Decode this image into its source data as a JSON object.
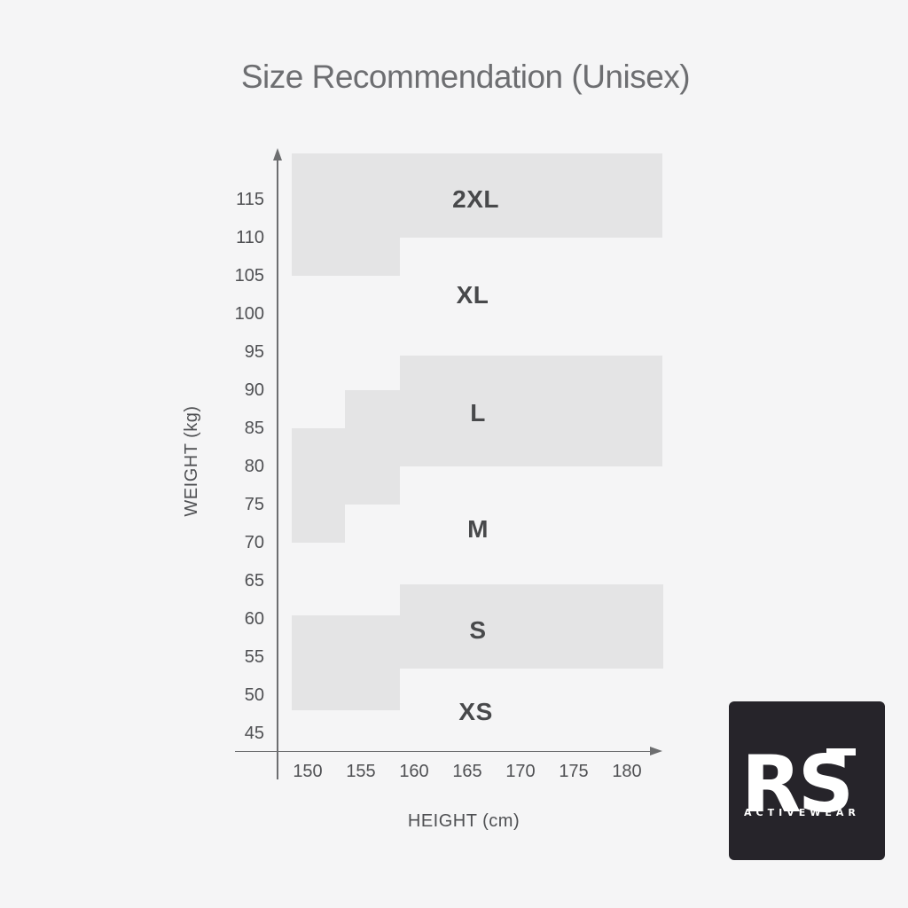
{
  "title": "Size Recommendation (Unisex)",
  "chart_data": {
    "type": "area",
    "subtype": "stepped-size-zone-map",
    "title": "Size Recommendation (Unisex)",
    "xlabel": "HEIGHT (cm)",
    "ylabel": "WEIGHT (kg)",
    "x_ticks": [
      150,
      155,
      160,
      165,
      170,
      175,
      180
    ],
    "y_ticks": [
      115,
      110,
      105,
      100,
      95,
      90,
      85,
      80,
      75,
      70,
      65,
      60,
      55,
      50,
      45
    ],
    "xlim_cm": [
      148.5,
      183.3
    ],
    "ylim_kg": [
      42.5,
      121
    ],
    "grid": false,
    "legend": false,
    "regions": [
      {
        "size": "2XL",
        "shaded": true,
        "label_at": {
          "height_cm": 165.8,
          "weight_kg": 115
        },
        "parts": [
          {
            "height_range_cm": [
              148.5,
              183.3
            ],
            "weight_range_kg": [
              110,
              121
            ]
          },
          {
            "height_range_cm": [
              148.5,
              158.7
            ],
            "weight_range_kg": [
              105,
              110
            ]
          }
        ]
      },
      {
        "size": "XL",
        "shaded": false,
        "label_at": {
          "height_cm": 165.5,
          "weight_kg": 102.4
        }
      },
      {
        "size": "L",
        "shaded": true,
        "label_at": {
          "height_cm": 166,
          "weight_kg": 87
        },
        "parts": [
          {
            "height_range_cm": [
              158.7,
              183.3
            ],
            "weight_range_kg": [
              80,
              94.5
            ]
          },
          {
            "height_range_cm": [
              153.5,
              158.7
            ],
            "weight_range_kg": [
              75,
              90
            ]
          },
          {
            "height_range_cm": [
              148.5,
              153.5
            ],
            "weight_range_kg": [
              70,
              85
            ]
          }
        ]
      },
      {
        "size": "M",
        "shaded": false,
        "label_at": {
          "height_cm": 166,
          "weight_kg": 71.8
        }
      },
      {
        "size": "S",
        "shaded": true,
        "label_at": {
          "height_cm": 166,
          "weight_kg": 58.5
        },
        "parts": [
          {
            "height_range_cm": [
              158.7,
              183.4
            ],
            "weight_range_kg": [
              53.5,
              64.5
            ]
          },
          {
            "height_range_cm": [
              148.5,
              158.7
            ],
            "weight_range_kg": [
              48,
              60.5
            ]
          }
        ]
      },
      {
        "size": "XS",
        "shaded": false,
        "label_at": {
          "height_cm": 165.8,
          "weight_kg": 47.8
        }
      }
    ],
    "colors": {
      "background": "#f5f5f6",
      "shaded_region": "#e4e4e5",
      "axis_line": "#6d6e70",
      "tick_text": "#4f5053",
      "size_label_text": "#48494b",
      "title_text": "#6d6e71"
    }
  },
  "logo": {
    "brand": "RS",
    "subtext": "ACTIVEWEAR",
    "bg_color": "#26242a",
    "text_color": "#ffffff"
  }
}
